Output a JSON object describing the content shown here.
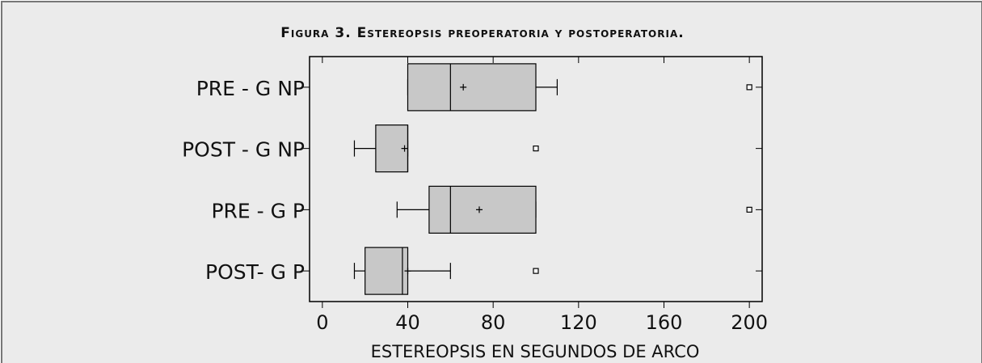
{
  "chart_data": {
    "type": "box",
    "title": "Figura 3. Estereopsis preoperatoria y postoperatoria.",
    "xlabel": "ESTEREOPSIS EN SEGUNDOS DE ARCO",
    "categories": [
      "PRE - G NP",
      "POST - G NP",
      "PRE - G P",
      "POST- G P"
    ],
    "boxes": [
      {
        "min": 40,
        "q1": 40,
        "median": 60,
        "q3": 100,
        "max": 110,
        "mean": 66,
        "outliers": [
          200
        ]
      },
      {
        "min": 15,
        "q1": 25,
        "median": 40,
        "q3": 40,
        "max": 40,
        "mean": 38.5,
        "outliers": [
          100
        ]
      },
      {
        "min": 35,
        "q1": 50,
        "median": 60,
        "q3": 100,
        "max": 100,
        "mean": 73.5,
        "outliers": [
          200
        ]
      },
      {
        "min": 15,
        "q1": 20,
        "median": 37.5,
        "q3": 40,
        "max": 60,
        "mean": 40,
        "outliers": [
          100
        ]
      }
    ],
    "color": "#c8c8c8",
    "xlim": [
      -6,
      206
    ],
    "xticks": [
      0,
      40,
      80,
      120,
      160,
      200
    ]
  }
}
